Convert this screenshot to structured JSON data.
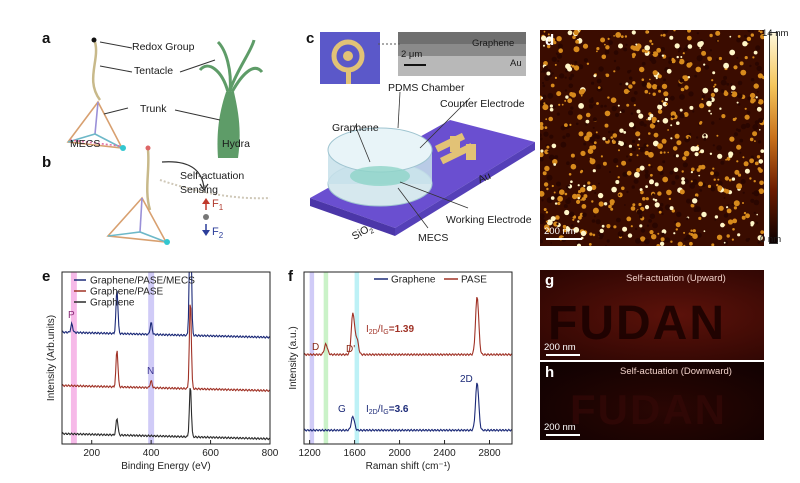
{
  "panels": {
    "a": {
      "letter": "a",
      "labels": {
        "redox": "Redox Group",
        "tentacle": "Tentacle",
        "trunk": "Trunk",
        "mecs": "MECS",
        "hydra": "Hydra"
      }
    },
    "b": {
      "letter": "b",
      "labels": {
        "self_actuation": "Self-actuation",
        "sensing": "Sensing",
        "f1": "F",
        "f1_sub": "1",
        "f2": "F",
        "f2_sub": "2"
      }
    },
    "c": {
      "letter": "c",
      "labels": {
        "graphene_inset": "Graphene",
        "au_inset": "Au",
        "scalebar": "2 μm",
        "pdms": "PDMS Chamber",
        "counter": "Counter Electrode",
        "graphene": "Graphene",
        "au": "Au",
        "working": "Working Electrode",
        "mecs": "MECS",
        "sio2": "SiO",
        "sio2_sub": "2"
      }
    },
    "d": {
      "letter": "d",
      "colorbar_max": "14 nm",
      "colorbar_min": "0 nm",
      "scalebar": "200 nm",
      "colors": {
        "high": "#fff6c8",
        "mid": "#d78a1c",
        "low": "#2a0600"
      }
    },
    "e": {
      "letter": "e",
      "markers": {
        "p": "P",
        "n": "N"
      },
      "legend_order": [
        "Graphene/PASE/MECS",
        "Graphene/PASE",
        "Graphene"
      ]
    },
    "f": {
      "letter": "f",
      "peak_labels": {
        "d": "D",
        "dprime": "D'",
        "g": "G",
        "twod": "2D"
      },
      "ratio_top": "I",
      "ratio_top_sub": "2D",
      "ratio_top_mid": "/I",
      "ratio_top_sub2": "G",
      "ratio_top_val": "=1.39",
      "ratio_bottom_val": "=3.6",
      "legend_order": [
        "Graphene",
        "PASE"
      ]
    },
    "g": {
      "letter": "g",
      "title": "Self-actuation (Upward)",
      "word": "FUDAN",
      "scalebar": "200 nm"
    },
    "h": {
      "letter": "h",
      "title": "Self-actuation (Downward)",
      "word": "FUDAN",
      "scalebar": "200 nm"
    }
  },
  "chart_data": [
    {
      "type": "line",
      "panel": "e",
      "xlabel": "Binding Energy (eV)",
      "ylabel": "Intensity (Arb.units)",
      "xlim": [
        100,
        800
      ],
      "xticks": [
        200,
        400,
        600,
        800
      ],
      "grid": false,
      "legend_position": "top-left",
      "highlight_bands": [
        {
          "label": "P",
          "x": [
            130,
            150
          ],
          "color": "#ee7fd6"
        },
        {
          "label": "N",
          "x": [
            390,
            410
          ],
          "color": "#a9a0f0"
        }
      ],
      "series": [
        {
          "name": "Graphene/PASE/MECS",
          "color": "#1c2a78",
          "offset": 0.62,
          "peaks": [
            {
              "x": 133,
              "h": 0.05
            },
            {
              "x": 285,
              "h": 0.26
            },
            {
              "x": 400,
              "h": 0.07
            },
            {
              "x": 532,
              "h": 0.9
            },
            {
              "x": 978,
              "h": 0
            }
          ]
        },
        {
          "name": "Graphene/PASE",
          "color": "#a03226",
          "offset": 0.31,
          "peaks": [
            {
              "x": 285,
              "h": 0.22
            },
            {
              "x": 400,
              "h": 0.04
            },
            {
              "x": 532,
              "h": 0.52
            }
          ]
        },
        {
          "name": "Graphene",
          "color": "#2b2b2b",
          "offset": 0.03,
          "peaks": [
            {
              "x": 285,
              "h": 0.1
            },
            {
              "x": 532,
              "h": 0.3
            }
          ]
        }
      ]
    },
    {
      "type": "line",
      "panel": "f",
      "xlabel": "Raman shift (cm⁻¹)",
      "ylabel": "Intensity (a.u.)",
      "xlim": [
        1150,
        3000
      ],
      "xticks": [
        1200,
        1600,
        2000,
        2400,
        2800
      ],
      "grid": false,
      "legend_position": "top",
      "highlight_bands": [
        {
          "x": [
            1200,
            1240
          ],
          "color": "#a9a0f0"
        },
        {
          "x": [
            1325,
            1365
          ],
          "color": "#9fe89a"
        },
        {
          "x": [
            1600,
            1640
          ],
          "color": "#86e6ee"
        }
      ],
      "series": [
        {
          "name": "PASE",
          "color": "#a03226",
          "offset": 0.52,
          "peaks": [
            {
              "x": 1345,
              "h": 0.06
            },
            {
              "x": 1585,
              "h": 0.24
            },
            {
              "x": 1620,
              "h": 0.09
            },
            {
              "x": 2690,
              "h": 0.34
            }
          ]
        },
        {
          "name": "Graphene",
          "color": "#1c2a78",
          "offset": 0.08,
          "peaks": [
            {
              "x": 1585,
              "h": 0.08
            },
            {
              "x": 2690,
              "h": 0.28
            }
          ]
        }
      ]
    }
  ]
}
